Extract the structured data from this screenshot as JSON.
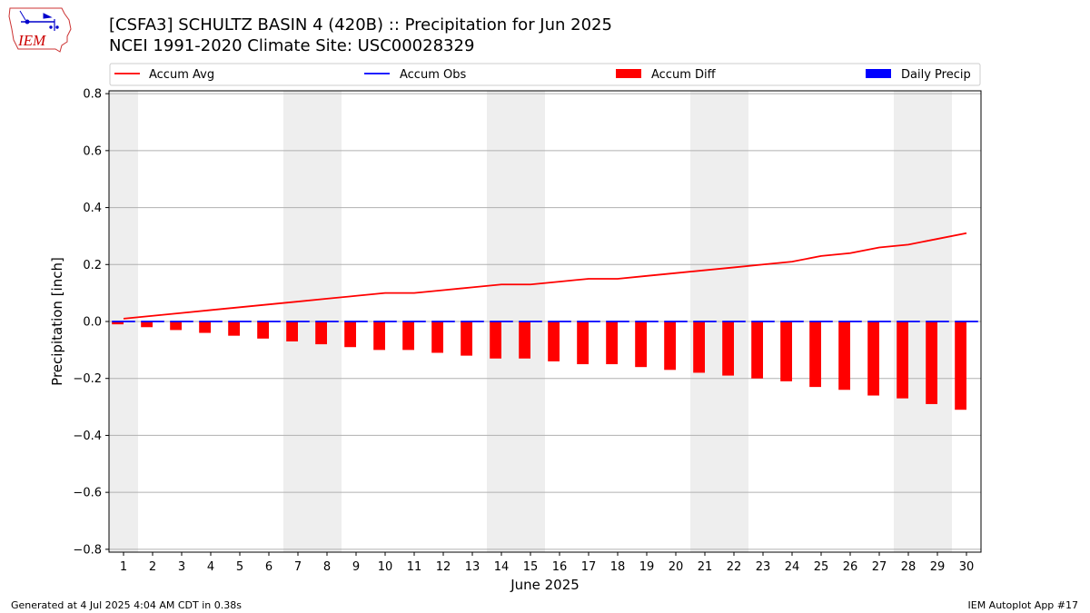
{
  "header": {
    "logo_text": "IEM",
    "title_line1": "[CSFA3] SCHULTZ BASIN 4 (420B) :: Precipitation for Jun 2025",
    "title_line2": "NCEI 1991-2020 Climate Site: USC00028329"
  },
  "footer": {
    "left": "Generated at 4 Jul 2025 4:04 AM CDT in 0.38s",
    "right": "IEM Autoplot App #17"
  },
  "colors": {
    "accum_avg": "#ff0000",
    "accum_obs": "#0000ff",
    "accum_diff": "#ff0000",
    "daily_precip": "#0000ff",
    "weekend_shade": "#eeeeee",
    "grid": "#b0b0b0"
  },
  "chart_data": {
    "type": "bar",
    "xlabel": "June 2025",
    "ylabel": "Precipitation [inch]",
    "ylim": [
      -0.81,
      0.81
    ],
    "xlim": [
      0.5,
      30.5
    ],
    "yticks": [
      -0.8,
      -0.6,
      -0.4,
      -0.2,
      0.0,
      0.2,
      0.4,
      0.6,
      0.8
    ],
    "ytick_labels": [
      "−0.8",
      "−0.6",
      "−0.4",
      "−0.2",
      "0.0",
      "0.2",
      "0.4",
      "0.6",
      "0.8"
    ],
    "grid": "horizontal",
    "legend_position": "top",
    "x": [
      1,
      2,
      3,
      4,
      5,
      6,
      7,
      8,
      9,
      10,
      11,
      12,
      13,
      14,
      15,
      16,
      17,
      18,
      19,
      20,
      21,
      22,
      23,
      24,
      25,
      26,
      27,
      28,
      29,
      30
    ],
    "x_labels": [
      "1",
      "2",
      "3",
      "4",
      "5",
      "6",
      "7",
      "8",
      "9",
      "10",
      "11",
      "12",
      "13",
      "14",
      "15",
      "16",
      "17",
      "18",
      "19",
      "20",
      "21",
      "22",
      "23",
      "24",
      "25",
      "26",
      "27",
      "28",
      "29",
      "30"
    ],
    "weekend_shading": [
      [
        0.5,
        1.5
      ],
      [
        6.5,
        8.5
      ],
      [
        13.5,
        15.5
      ],
      [
        20.5,
        22.5
      ],
      [
        27.5,
        29.5
      ]
    ],
    "series": [
      {
        "name": "Accum Avg",
        "type": "line",
        "values": [
          0.01,
          0.02,
          0.03,
          0.04,
          0.05,
          0.06,
          0.07,
          0.08,
          0.09,
          0.1,
          0.1,
          0.11,
          0.12,
          0.13,
          0.13,
          0.14,
          0.15,
          0.15,
          0.16,
          0.17,
          0.18,
          0.19,
          0.2,
          0.21,
          0.23,
          0.24,
          0.26,
          0.27,
          0.29,
          0.31
        ]
      },
      {
        "name": "Accum Obs",
        "type": "step",
        "values": [
          0,
          0,
          0,
          0,
          0,
          0,
          0,
          0,
          0,
          0,
          0,
          0,
          0,
          0,
          0,
          0,
          0,
          0,
          0,
          0,
          0,
          0,
          0,
          0,
          0,
          0,
          0,
          0,
          0,
          0
        ]
      },
      {
        "name": "Accum Diff",
        "type": "bar",
        "values": [
          -0.01,
          -0.02,
          -0.03,
          -0.04,
          -0.05,
          -0.06,
          -0.07,
          -0.08,
          -0.09,
          -0.1,
          -0.1,
          -0.11,
          -0.12,
          -0.13,
          -0.13,
          -0.14,
          -0.15,
          -0.15,
          -0.16,
          -0.17,
          -0.18,
          -0.19,
          -0.2,
          -0.21,
          -0.23,
          -0.24,
          -0.26,
          -0.27,
          -0.29,
          -0.31
        ]
      },
      {
        "name": "Daily Precip",
        "type": "bar",
        "values": [
          0,
          0,
          0,
          0,
          0,
          0,
          0,
          0,
          0,
          0,
          0,
          0,
          0,
          0,
          0,
          0,
          0,
          0,
          0,
          0,
          0,
          0,
          0,
          0,
          0,
          0,
          0,
          0,
          0,
          0
        ]
      }
    ]
  }
}
